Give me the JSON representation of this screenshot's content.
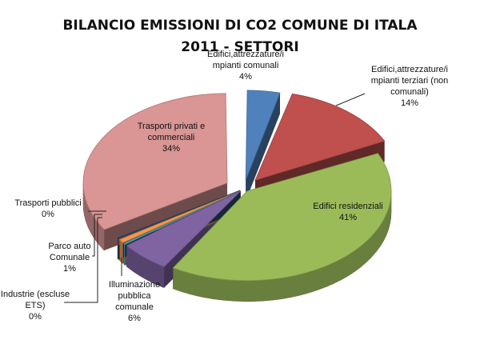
{
  "chart_data": {
    "type": "pie",
    "title": "BILANCIO EMISSIONI DI CO2 COMUNE DI ITALA",
    "subtitle": "2011 - SETTORI",
    "legend": "none",
    "slices": [
      {
        "label_lines": [
          "Edifici,attrezzature/i",
          "mpianti comunali"
        ],
        "value_label": "4%",
        "value": 4,
        "color": "#4f81bd"
      },
      {
        "label_lines": [
          "Edifici,attrezzature/i",
          "mpianti terziari (non",
          "comunali)"
        ],
        "value_label": "14%",
        "value": 14,
        "color": "#c0504d"
      },
      {
        "label_lines": [
          "Edifici residenziali"
        ],
        "value_label": "41%",
        "value": 41,
        "color": "#9bbb59"
      },
      {
        "label_lines": [
          "Illuminazione",
          "pubblica",
          "comunale"
        ],
        "value_label": "6%",
        "value": 6,
        "color": "#8064a2"
      },
      {
        "label_lines": [
          "Industrie (escluse",
          "ETS)"
        ],
        "value_label": "0%",
        "value": 0.2,
        "color": "#4bacc6"
      },
      {
        "label_lines": [
          "Parco auto",
          "Comunale"
        ],
        "value_label": "1%",
        "value": 1,
        "color": "#f79646"
      },
      {
        "label_lines": [
          "Trasporti pubblici"
        ],
        "value_label": "0%",
        "value": 0.2,
        "color": "#2c4d75"
      },
      {
        "label_lines": [
          "Trasporti privati e",
          "commerciali"
        ],
        "value_label": "34%",
        "value": 34,
        "color": "#d99694"
      }
    ]
  }
}
